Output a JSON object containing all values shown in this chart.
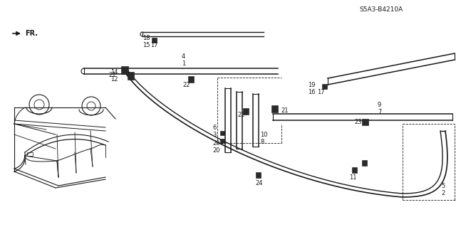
{
  "bg_color": "#ffffff",
  "line_color": "#1a1a1a",
  "diagram_ref": "S5A3-B4210A",
  "car_silhouette": true,
  "labels": {
    "fr": "FR.",
    "parts": [
      "1",
      "2",
      "3",
      "4",
      "5",
      "6",
      "7",
      "8",
      "9",
      "10",
      "11",
      "12",
      "14",
      "15",
      "16",
      "17",
      "18",
      "19",
      "20",
      "21",
      "22",
      "23",
      "24"
    ]
  }
}
